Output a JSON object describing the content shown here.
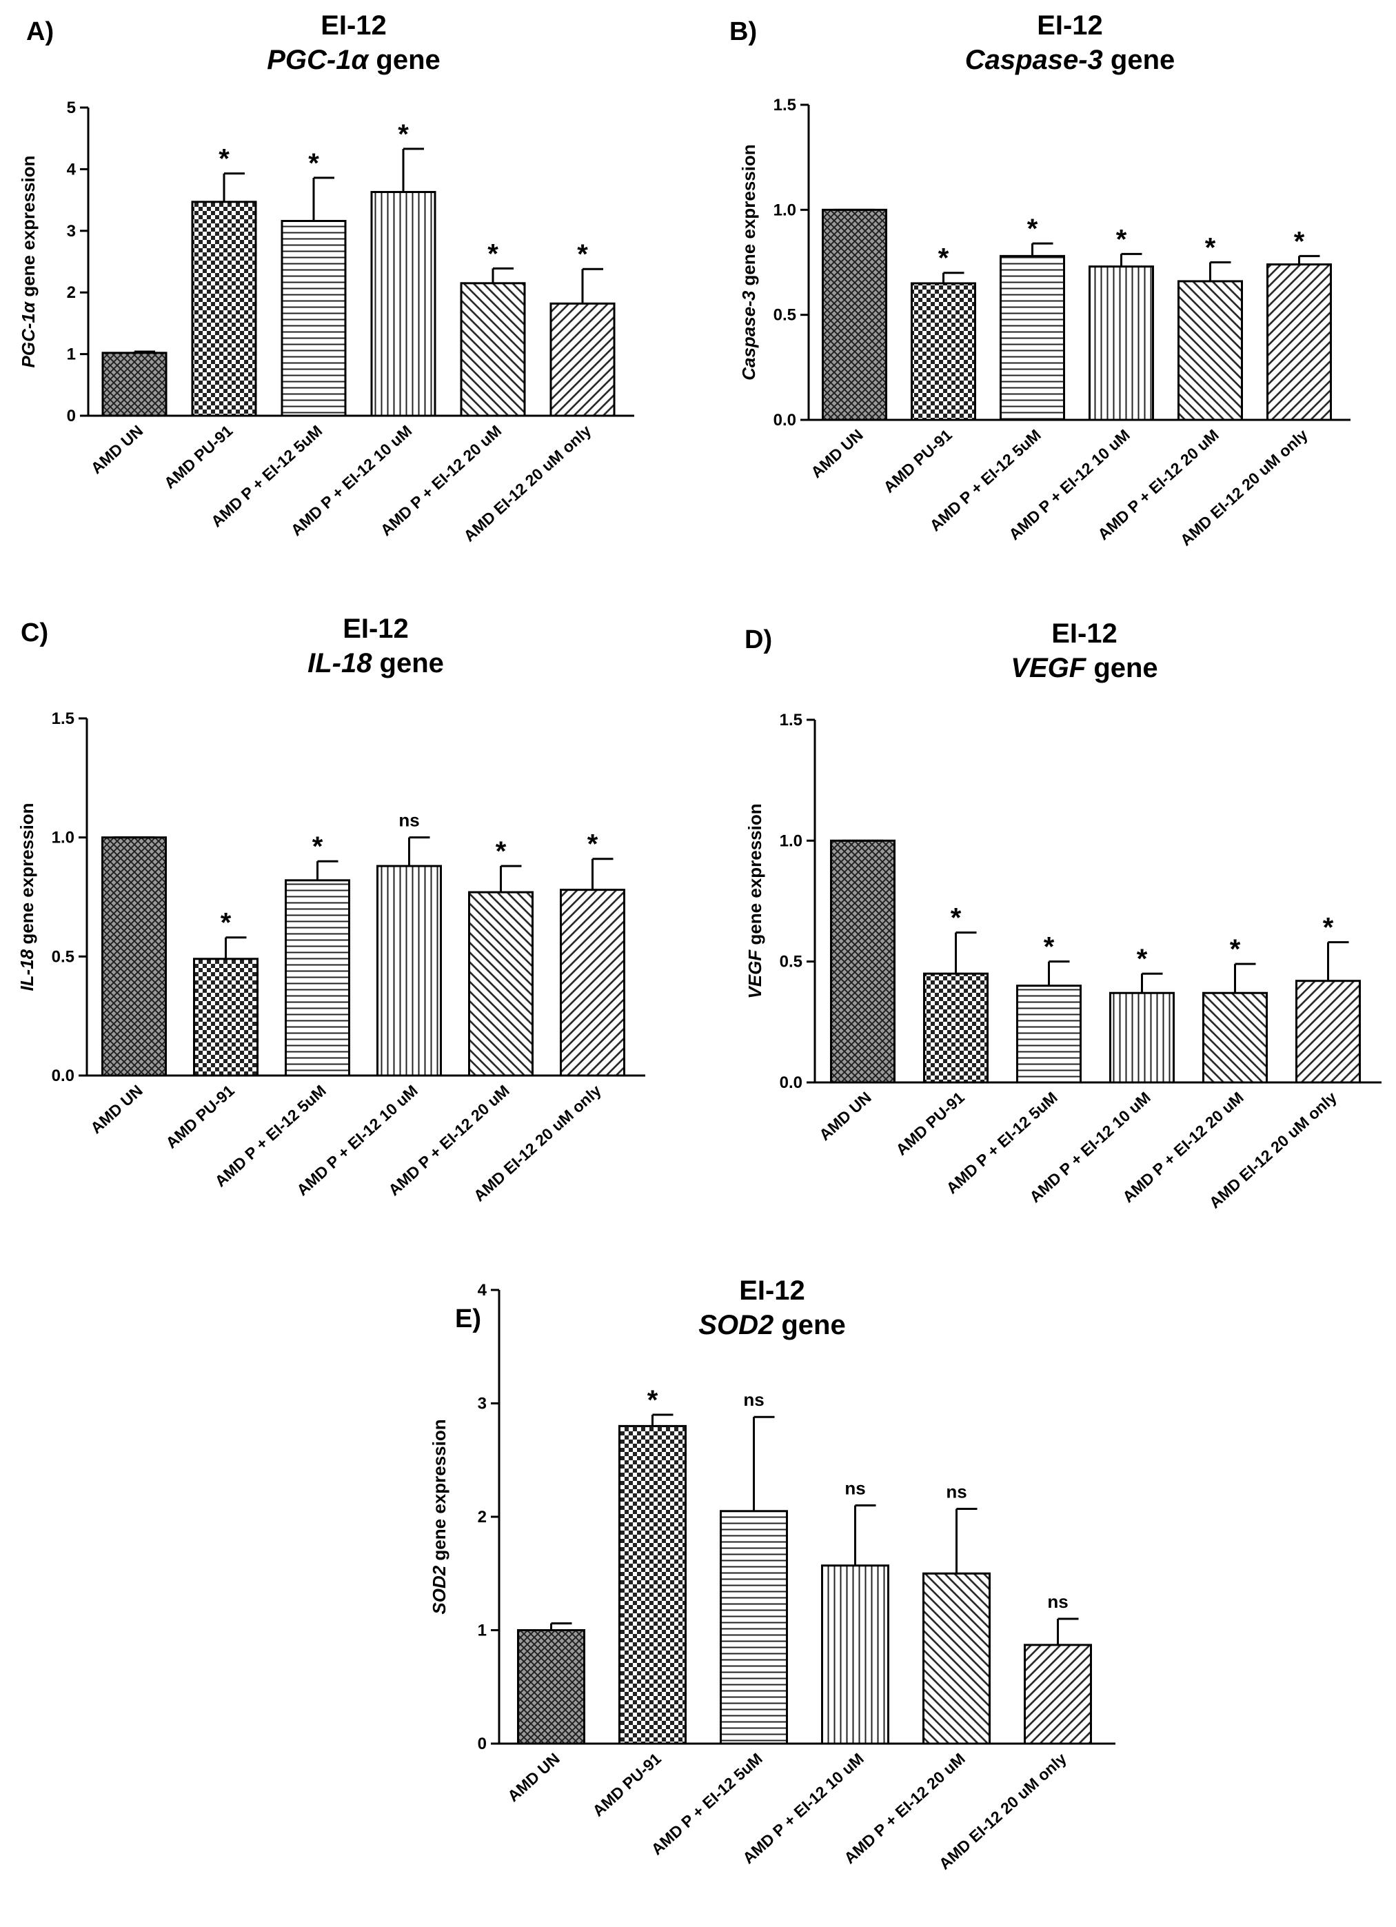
{
  "chart_data": [
    {
      "panel": "A)",
      "type": "bar",
      "title": "EI-12",
      "subtitle_italic": "PGC-1α",
      "subtitle_suffix": "gene",
      "ylabel_italic": "PGC-1α",
      "ylabel_suffix": " gene expression",
      "ylim": [
        0,
        5
      ],
      "yticks": [
        "0",
        "1",
        "2",
        "3",
        "4",
        "5"
      ],
      "categories": [
        "AMD UN",
        "AMD PU-91",
        "AMD P + EI-12 5uM",
        "AMD P + EI-12 10 uM",
        "AMD P + EI-12 20 uM",
        "AMD EI-12 20 uM only"
      ],
      "values": [
        1.02,
        3.47,
        3.16,
        3.63,
        2.15,
        1.82
      ],
      "errors": [
        0.02,
        0.46,
        0.7,
        0.7,
        0.24,
        0.56
      ],
      "significance": [
        "",
        "*",
        "*",
        "*",
        "*",
        "*"
      ]
    },
    {
      "panel": "B)",
      "type": "bar",
      "title": "EI-12",
      "subtitle_italic": "Caspase-3",
      "subtitle_suffix": "gene",
      "ylabel_italic": "Caspase-3",
      "ylabel_suffix": " gene expression",
      "ylim": [
        0,
        1.5
      ],
      "yticks": [
        "0.0",
        "0.5",
        "1.0",
        "1.5"
      ],
      "categories": [
        "AMD UN",
        "AMD PU-91",
        "AMD P + EI-12 5uM",
        "AMD P + EI-12 10 uM",
        "AMD P + EI-12 20 uM",
        "AMD EI-12 20 uM only"
      ],
      "values": [
        1.0,
        0.65,
        0.78,
        0.73,
        0.66,
        0.74
      ],
      "errors": [
        0.0,
        0.05,
        0.06,
        0.06,
        0.09,
        0.04
      ],
      "significance": [
        "",
        "*",
        "*",
        "*",
        "*",
        "*"
      ]
    },
    {
      "panel": "C)",
      "type": "bar",
      "title": "EI-12",
      "subtitle_italic": "IL-18",
      "subtitle_suffix": "gene",
      "ylabel_italic": "IL-18",
      "ylabel_suffix": " gene expression",
      "ylim": [
        0,
        1.5
      ],
      "yticks": [
        "0.0",
        "0.5",
        "1.0",
        "1.5"
      ],
      "categories": [
        "AMD UN",
        "AMD PU-91",
        "AMD P + EI-12 5uM",
        "AMD P + EI-12 10 uM",
        "AMD P + EI-12 20 uM",
        "AMD EI-12 20 uM only"
      ],
      "values": [
        1.0,
        0.49,
        0.82,
        0.88,
        0.77,
        0.78
      ],
      "errors": [
        0.0,
        0.09,
        0.08,
        0.12,
        0.11,
        0.13
      ],
      "significance": [
        "",
        "*",
        "*",
        "ns",
        "*",
        "*"
      ]
    },
    {
      "panel": "D)",
      "type": "bar",
      "title": "EI-12",
      "subtitle_italic": "VEGF",
      "subtitle_suffix": "gene",
      "ylabel_italic": "VEGF",
      "ylabel_suffix": " gene expression",
      "ylim": [
        0,
        1.5
      ],
      "yticks": [
        "0.0",
        "0.5",
        "1.0",
        "1.5"
      ],
      "categories": [
        "AMD UN",
        "AMD PU-91",
        "AMD P + EI-12 5uM",
        "AMD P + EI-12 10 uM",
        "AMD P + EI-12 20 uM",
        "AMD EI-12 20 uM only"
      ],
      "values": [
        1.0,
        0.45,
        0.4,
        0.37,
        0.37,
        0.42
      ],
      "errors": [
        0.0,
        0.17,
        0.1,
        0.08,
        0.12,
        0.16
      ],
      "significance": [
        "",
        "*",
        "*",
        "*",
        "*",
        "*"
      ]
    },
    {
      "panel": "E)",
      "type": "bar",
      "title": "EI-12",
      "subtitle_italic": "SOD2",
      "subtitle_suffix": "gene",
      "ylabel_italic": "SOD2",
      "ylabel_suffix": "  gene expression",
      "ylim": [
        0,
        4
      ],
      "yticks": [
        "0",
        "1",
        "2",
        "3",
        "4"
      ],
      "categories": [
        "AMD UN",
        "AMD PU-91",
        "AMD P + EI-12 5uM",
        "AMD P + EI-12 10 uM",
        "AMD P + EI-12 20 uM",
        "AMD EI-12 20 uM only"
      ],
      "values": [
        1.0,
        2.8,
        2.05,
        1.57,
        1.5,
        0.87
      ],
      "errors": [
        0.06,
        0.1,
        0.83,
        0.53,
        0.57,
        0.23
      ],
      "significance": [
        "",
        "*",
        "ns",
        "ns",
        "ns",
        "ns"
      ]
    }
  ]
}
